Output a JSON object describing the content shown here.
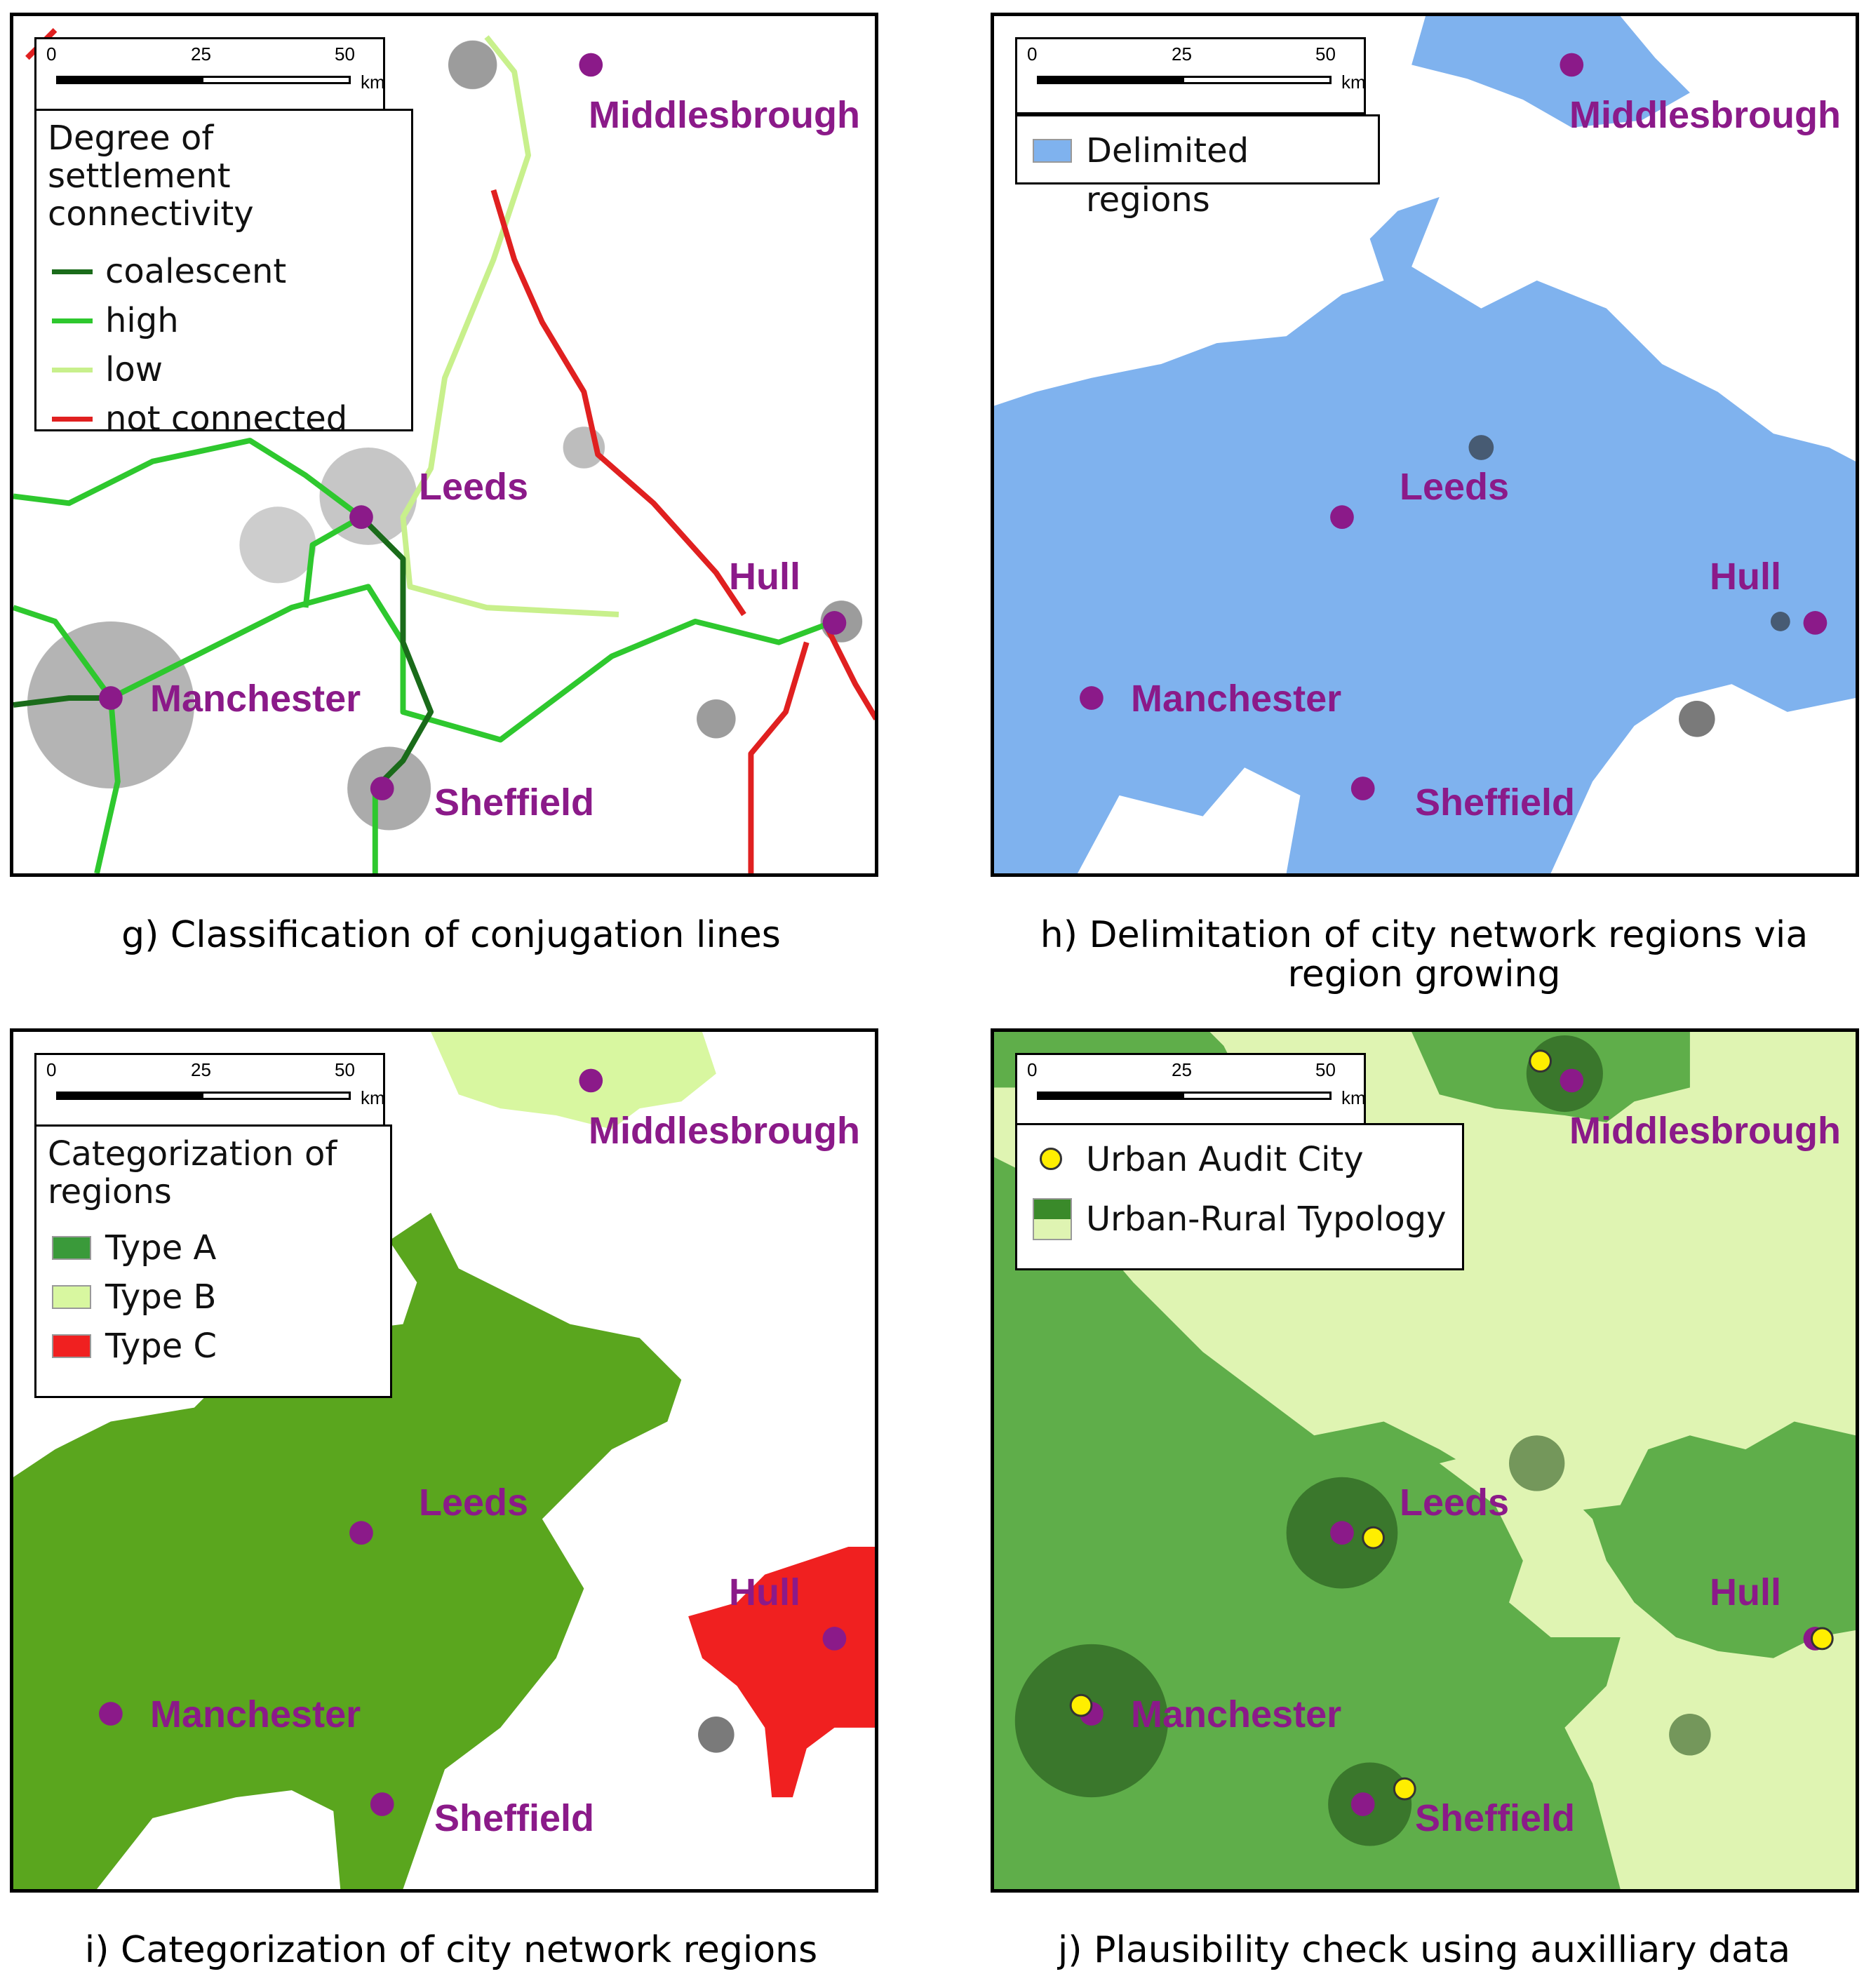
{
  "scale_bar": {
    "ticks": [
      "0",
      "25",
      "50"
    ],
    "unit": "km"
  },
  "cities": {
    "middlesbrough": "Middlesbrough",
    "leeds": "Leeds",
    "hull": "Hull",
    "manchester": "Manchester",
    "sheffield": "Sheffield"
  },
  "colors": {
    "city_marker": "#8b1a89",
    "coalescent": "#1a6b1a",
    "high": "#2ec82e",
    "low": "#c8f08c",
    "not_connected": "#e02020",
    "delimited": "#7fb2ee",
    "type_a": "#5aa61e",
    "type_b": "#d8f7a0",
    "type_c": "#f02020",
    "urban_audit": "#ffee00",
    "urban_rural_dark": "#5fae4a",
    "urban_rural_light": "#dff4b2"
  },
  "panels": {
    "g": {
      "caption": "g) Classification of conjugation lines",
      "legend_title": "Degree of settlement connectivity",
      "legend": [
        "coalescent",
        "high",
        "low",
        "not connected"
      ]
    },
    "h": {
      "caption": "h) Delimitation of city network regions via region growing",
      "legend": [
        "Delimited regions"
      ]
    },
    "i": {
      "caption": "i) Categorization of city network regions",
      "legend_title": "Categorization of regions",
      "legend": [
        "Type A",
        "Type B",
        "Type C"
      ]
    },
    "j": {
      "caption": "j) Plausibility check using auxilliary data",
      "legend": [
        "Urban Audit City",
        "Urban-Rural Typology"
      ]
    }
  }
}
